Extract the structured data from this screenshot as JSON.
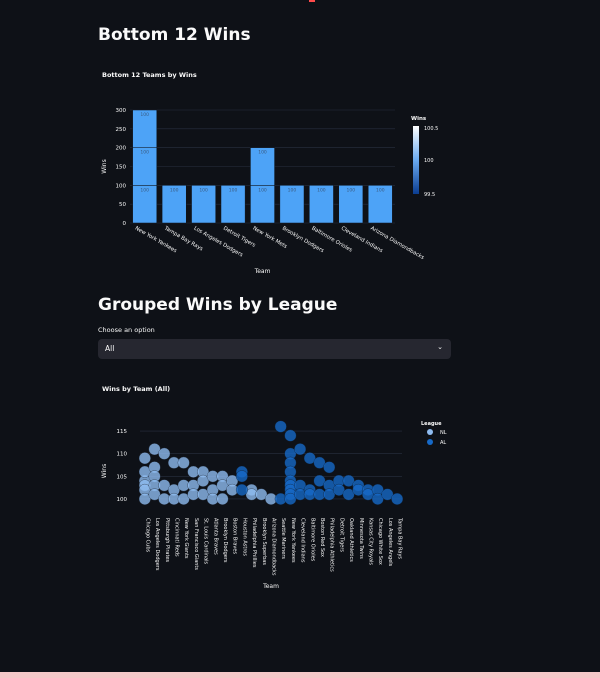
{
  "header": {
    "title": "Bottom 12 Wins"
  },
  "bar_section": {
    "chart_title": "Bottom 12 Teams by Wins"
  },
  "grouped_section": {
    "title": "Grouped Wins by League",
    "select_label": "Choose an option",
    "select_value": "All",
    "chart_title": "Wins by Team (All)"
  },
  "colors": {
    "background": "#0e1117",
    "bar": "#4da3f7",
    "nl": "#8fbcf0",
    "al": "#1669c7"
  },
  "chart_data": [
    {
      "type": "bar",
      "title": "Bottom 12 Teams by Wins",
      "xlabel": "Team",
      "ylabel": "Wins",
      "ylim": [
        0,
        300
      ],
      "yticks": [
        0,
        50,
        100,
        150,
        200,
        250,
        300
      ],
      "categories": [
        "New York Yankees",
        "Tampa Bay Rays",
        "Los Angeles Dodgers",
        "Detroit Tigers",
        "New York Mets",
        "Brooklyn Dodgers",
        "Baltimore Orioles",
        "Cleveland Indians",
        "Arizona Diamondbacks"
      ],
      "segments": [
        [
          100,
          100,
          100
        ],
        [
          100
        ],
        [
          100
        ],
        [
          100
        ],
        [
          100,
          100
        ],
        [
          100
        ],
        [
          100
        ],
        [
          100
        ],
        [
          100
        ]
      ],
      "bar_label": "100",
      "colorbar": {
        "title": "Wins",
        "ticks": [
          "100.5",
          "100",
          "99.5"
        ]
      }
    },
    {
      "type": "scatter",
      "title": "Wins by Team (All)",
      "xlabel": "Team",
      "ylabel": "Wins",
      "ylim": [
        98,
        117
      ],
      "yticks": [
        100,
        105,
        110,
        115
      ],
      "legend": {
        "title": "League",
        "entries": [
          "NL",
          "AL"
        ],
        "position": "top-right"
      },
      "categories": [
        "Chicago Cubs",
        "Los Angeles Dodgers",
        "Pittsburgh Pirates",
        "Cincinnati Reds",
        "New York Giants",
        "San Francisco Giants",
        "St. Louis Cardinals",
        "Atlanta Braves",
        "Brooklyn Dodgers",
        "Boston Braves",
        "Houston Astros",
        "Philadelphia Phillies",
        "Brooklyn Superbas",
        "Arizona Diamondbacks",
        "Seattle Mariners",
        "New York Yankees",
        "Cleveland Indians",
        "Baltimore Orioles",
        "Boston Red Sox",
        "Philadelphia Athletics",
        "Detroit Tigers",
        "Oakland Athletics",
        "Minnesota Twins",
        "Kansas City Royals",
        "Chicago White Sox",
        "Los Angeles Angels",
        "Tampa Bay Rays"
      ],
      "series": [
        {
          "name": "NL",
          "points": [
            [
              0,
              104
            ],
            [
              0,
              103
            ],
            [
              0,
              102
            ],
            [
              0,
              106
            ],
            [
              0,
              109
            ],
            [
              0,
              100
            ],
            [
              1,
              111
            ],
            [
              1,
              107
            ],
            [
              1,
              105
            ],
            [
              1,
              103
            ],
            [
              1,
              101
            ],
            [
              2,
              110
            ],
            [
              2,
              103
            ],
            [
              2,
              100
            ],
            [
              3,
              108
            ],
            [
              3,
              102
            ],
            [
              3,
              100
            ],
            [
              4,
              108
            ],
            [
              4,
              103
            ],
            [
              4,
              100
            ],
            [
              5,
              106
            ],
            [
              5,
              103
            ],
            [
              5,
              101
            ],
            [
              6,
              106
            ],
            [
              6,
              104
            ],
            [
              6,
              101
            ],
            [
              7,
              105
            ],
            [
              7,
              102
            ],
            [
              7,
              100
            ],
            [
              8,
              105
            ],
            [
              8,
              103
            ],
            [
              8,
              100
            ],
            [
              9,
              104
            ],
            [
              9,
              102
            ],
            [
              11,
              102
            ],
            [
              11,
              101
            ],
            [
              12,
              101
            ],
            [
              13,
              100
            ]
          ]
        },
        {
          "name": "AL",
          "points": [
            [
              10,
              106
            ],
            [
              10,
              105
            ],
            [
              10,
              102
            ],
            [
              14,
              116
            ],
            [
              14,
              100
            ],
            [
              15,
              114
            ],
            [
              15,
              110
            ],
            [
              15,
              108
            ],
            [
              15,
              106
            ],
            [
              15,
              104
            ],
            [
              15,
              103
            ],
            [
              15,
              102
            ],
            [
              15,
              101
            ],
            [
              15,
              100
            ],
            [
              16,
              111
            ],
            [
              16,
              103
            ],
            [
              16,
              101
            ],
            [
              17,
              109
            ],
            [
              17,
              102
            ],
            [
              17,
              101
            ],
            [
              18,
              108
            ],
            [
              18,
              104
            ],
            [
              18,
              101
            ],
            [
              19,
              107
            ],
            [
              19,
              103
            ],
            [
              19,
              101
            ],
            [
              20,
              104
            ],
            [
              20,
              102
            ],
            [
              21,
              104
            ],
            [
              21,
              101
            ],
            [
              22,
              103
            ],
            [
              22,
              102
            ],
            [
              23,
              102
            ],
            [
              23,
              101
            ],
            [
              24,
              102
            ],
            [
              24,
              100
            ],
            [
              25,
              101
            ],
            [
              26,
              100
            ]
          ]
        }
      ]
    }
  ]
}
